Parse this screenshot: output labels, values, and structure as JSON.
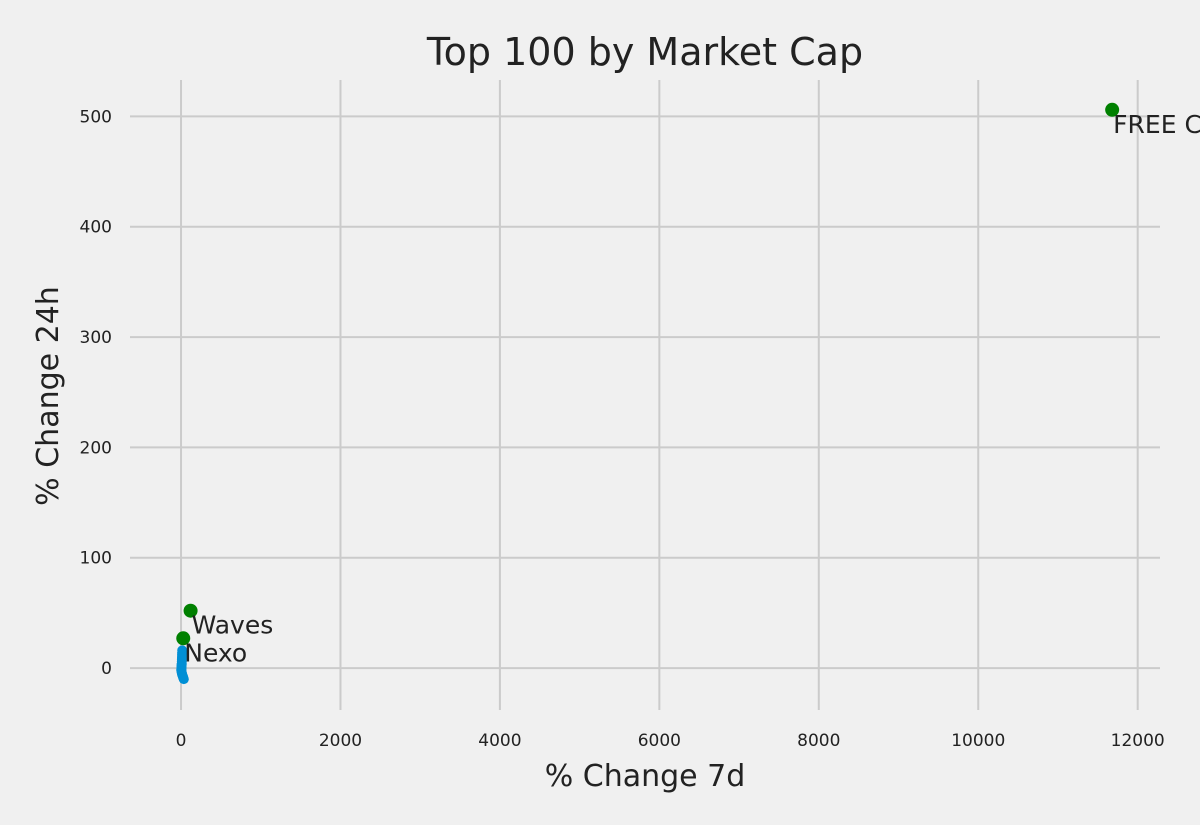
{
  "chart_data": {
    "type": "scatter",
    "title": "Top 100 by Market Cap",
    "xlabel": "% Change 7d",
    "ylabel": "% Change 24h",
    "xlim": [
      -640,
      12280
    ],
    "ylim": [
      -38,
      533
    ],
    "xticks": [
      0,
      2000,
      4000,
      6000,
      8000,
      10000,
      12000
    ],
    "xtick_labels": [
      "0",
      "2000",
      "4000",
      "6000",
      "8000",
      "10000",
      "12000"
    ],
    "yticks": [
      0,
      100,
      200,
      300,
      400,
      500
    ],
    "ytick_labels": [
      "0",
      "100",
      "200",
      "300",
      "400",
      "500"
    ],
    "grid": true,
    "series": [
      {
        "color": "#008fd5",
        "points": [
          {
            "x": 15,
            "y": 16
          },
          {
            "x": 14,
            "y": 14
          },
          {
            "x": 13,
            "y": 12
          },
          {
            "x": 12,
            "y": 10
          },
          {
            "x": 11,
            "y": 8
          },
          {
            "x": 10,
            "y": 6
          },
          {
            "x": 9,
            "y": 4
          },
          {
            "x": 8,
            "y": 3
          },
          {
            "x": 7,
            "y": 2
          },
          {
            "x": 6,
            "y": 1
          },
          {
            "x": 5,
            "y": 0
          },
          {
            "x": 4,
            "y": -1
          },
          {
            "x": 3,
            "y": -2
          },
          {
            "x": 6,
            "y": -3
          },
          {
            "x": 9,
            "y": -4
          },
          {
            "x": 12,
            "y": -5
          },
          {
            "x": 15,
            "y": -6
          },
          {
            "x": 20,
            "y": -7
          },
          {
            "x": 25,
            "y": -8
          },
          {
            "x": 30,
            "y": -9
          },
          {
            "x": 35,
            "y": -10
          }
        ]
      },
      {
        "color": "#008000",
        "points": [
          {
            "x": 11680,
            "y": 506,
            "label": "FREE C"
          },
          {
            "x": 120,
            "y": 52,
            "label": "Waves"
          },
          {
            "x": 28,
            "y": 27,
            "label": "Nexo"
          }
        ]
      }
    ]
  }
}
